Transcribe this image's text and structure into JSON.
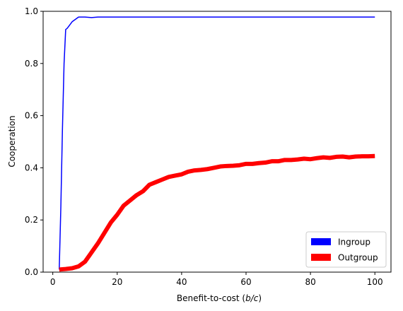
{
  "chart_data": {
    "type": "line",
    "title": "",
    "xlabel_prefix": "Benefit-to-cost (",
    "xlabel_var": "b/c",
    "xlabel_suffix": ")",
    "ylabel": "Cooperation",
    "xlim": [
      -3,
      105
    ],
    "ylim": [
      0,
      1
    ],
    "xticks": [
      0,
      20,
      40,
      60,
      80,
      100
    ],
    "yticks": [
      0.0,
      0.2,
      0.4,
      0.6,
      0.8,
      1.0
    ],
    "xtick_labels": [
      "0",
      "20",
      "40",
      "60",
      "80",
      "100"
    ],
    "ytick_labels": [
      "0.0",
      "0.2",
      "0.4",
      "0.6",
      "0.8",
      "1.0"
    ],
    "grid": false,
    "legend_position": "lower-right",
    "series": [
      {
        "name": "Ingroup",
        "color": "#0000ff",
        "x": [
          2,
          2.5,
          3,
          3.5,
          4,
          4.5,
          6,
          8,
          10,
          12,
          14,
          20,
          30,
          40,
          50,
          60,
          70,
          80,
          90,
          100
        ],
        "y": [
          0.01,
          0.25,
          0.55,
          0.8,
          0.93,
          0.935,
          0.96,
          0.978,
          0.978,
          0.976,
          0.978,
          0.978,
          0.978,
          0.978,
          0.978,
          0.978,
          0.978,
          0.978,
          0.978,
          0.978
        ]
      },
      {
        "name": "Outgroup",
        "color": "#ff0000",
        "x": [
          2,
          4,
          6,
          8,
          10,
          12,
          14,
          16,
          18,
          20,
          22,
          24,
          26,
          28,
          30,
          32,
          34,
          36,
          38,
          40,
          42,
          44,
          46,
          48,
          50,
          52,
          54,
          56,
          58,
          60,
          62,
          64,
          66,
          68,
          70,
          72,
          74,
          76,
          78,
          80,
          82,
          84,
          86,
          88,
          90,
          92,
          94,
          96,
          98,
          100
        ],
        "y": [
          0.01,
          0.012,
          0.015,
          0.022,
          0.04,
          0.075,
          0.11,
          0.15,
          0.19,
          0.22,
          0.255,
          0.275,
          0.295,
          0.31,
          0.335,
          0.345,
          0.355,
          0.365,
          0.37,
          0.375,
          0.385,
          0.39,
          0.392,
          0.395,
          0.4,
          0.405,
          0.407,
          0.408,
          0.41,
          0.415,
          0.415,
          0.418,
          0.42,
          0.425,
          0.425,
          0.43,
          0.43,
          0.432,
          0.435,
          0.433,
          0.437,
          0.44,
          0.438,
          0.442,
          0.443,
          0.44,
          0.443,
          0.444,
          0.444,
          0.445
        ]
      }
    ]
  }
}
